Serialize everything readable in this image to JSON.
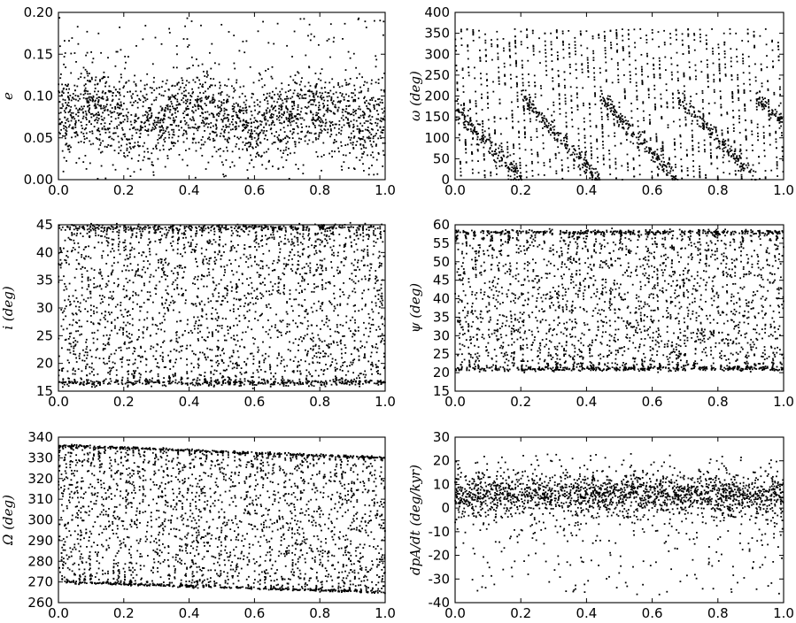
{
  "chart_data": [
    {
      "id": "e",
      "type": "scatter",
      "ylabel": "e",
      "xlim": [
        0.0,
        1.0
      ],
      "ylim": [
        0.0,
        0.2
      ],
      "xticks": [
        "0.0",
        "0.2",
        "0.4",
        "0.6",
        "0.8",
        "1.0"
      ],
      "yticks": [
        "0.00",
        "0.05",
        "0.10",
        "0.15",
        "0.20"
      ],
      "pattern": "band",
      "band_center": 0.075,
      "band_spread": 0.045,
      "approx_points": 2200
    },
    {
      "id": "omega",
      "type": "scatter",
      "ylabel": "ω (deg)",
      "xlim": [
        0.0,
        1.0
      ],
      "ylim": [
        0,
        400
      ],
      "xticks": [
        "0.0",
        "0.2",
        "0.4",
        "0.6",
        "0.8",
        "1.0"
      ],
      "yticks": [
        "0",
        "50",
        "100",
        "150",
        "200",
        "250",
        "300",
        "350",
        "400"
      ],
      "pattern": "sweep",
      "range": [
        0,
        360
      ],
      "oscillations": 55,
      "approx_points": 2200
    },
    {
      "id": "i",
      "type": "scatter",
      "ylabel": "i (deg)",
      "xlim": [
        0.0,
        1.0
      ],
      "ylim": [
        15,
        45
      ],
      "xticks": [
        "0.0",
        "0.2",
        "0.4",
        "0.6",
        "0.8",
        "1.0"
      ],
      "yticks": [
        "15",
        "20",
        "25",
        "30",
        "35",
        "40",
        "45"
      ],
      "pattern": "oscillation",
      "range": [
        16.5,
        44.5
      ],
      "oscillations": 55,
      "approx_points": 2400
    },
    {
      "id": "psi",
      "type": "scatter",
      "ylabel": "ψ (deg)",
      "xlim": [
        0.0,
        1.0
      ],
      "ylim": [
        15,
        60
      ],
      "xticks": [
        "0.0",
        "0.2",
        "0.4",
        "0.6",
        "0.8",
        "1.0"
      ],
      "yticks": [
        "15",
        "20",
        "25",
        "30",
        "35",
        "40",
        "45",
        "50",
        "55",
        "60"
      ],
      "pattern": "oscillation",
      "range": [
        21,
        58
      ],
      "oscillations": 38,
      "approx_points": 2400
    },
    {
      "id": "Omega",
      "type": "scatter",
      "ylabel": "Ω (deg)",
      "xlim": [
        0.0,
        1.0
      ],
      "ylim": [
        260,
        340
      ],
      "xticks": [
        "0.0",
        "0.2",
        "0.4",
        "0.6",
        "0.8",
        "1.0"
      ],
      "yticks": [
        "260",
        "270",
        "280",
        "290",
        "300",
        "310",
        "320",
        "330",
        "340"
      ],
      "pattern": "oscillation",
      "range_start": [
        270,
        336
      ],
      "range_end": [
        265,
        330
      ],
      "oscillations": 58,
      "approx_points": 2400
    },
    {
      "id": "dpA",
      "type": "scatter",
      "ylabel": "dpA/dt (deg/kyr)",
      "xlim": [
        0.0,
        1.0
      ],
      "ylim": [
        -40,
        30
      ],
      "xticks": [
        "0.0",
        "0.2",
        "0.4",
        "0.6",
        "0.8",
        "1.0"
      ],
      "yticks": [
        "-40",
        "-30",
        "-20",
        "-10",
        "0",
        "10",
        "20",
        "30"
      ],
      "pattern": "band_with_tail",
      "band_center": 6,
      "band_spread": 6,
      "tail_min": -37,
      "approx_points": 2200
    }
  ]
}
